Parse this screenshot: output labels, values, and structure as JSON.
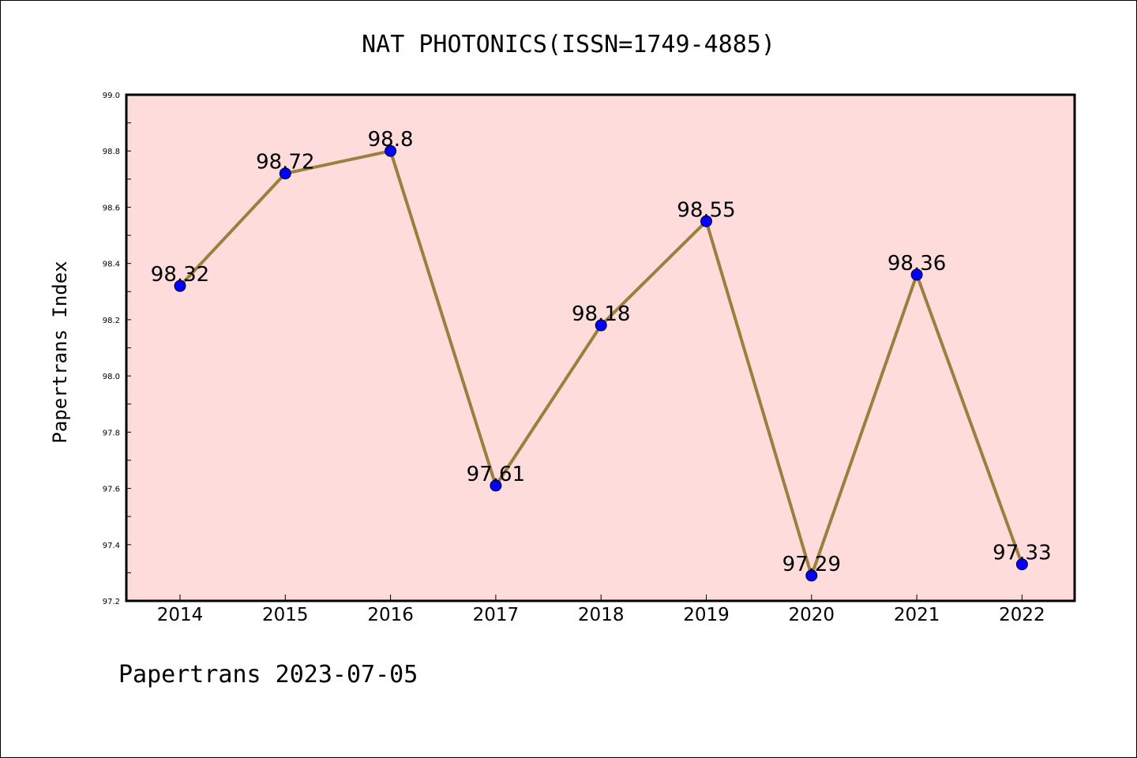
{
  "chart_data": {
    "type": "line",
    "title": "NAT PHOTONICS(ISSN=1749-4885)",
    "xlabel": "",
    "ylabel": "Papertrans Index",
    "categories": [
      "2014",
      "2015",
      "2016",
      "2017",
      "2018",
      "2019",
      "2020",
      "2021",
      "2022"
    ],
    "series": [
      {
        "values": [
          98.32,
          98.72,
          98.8,
          97.61,
          98.18,
          98.55,
          97.29,
          98.36,
          97.33
        ],
        "data_labels": [
          "98.32",
          "98.72",
          "98.8",
          "97.61",
          "98.18",
          "98.55",
          "97.29",
          "98.36",
          "97.33"
        ],
        "line_color": "#9b7f3e",
        "marker_color": "#0000ff"
      }
    ],
    "ylim": [
      97.2,
      99.0
    ],
    "yticks": [
      "97.2",
      "97.4",
      "97.6",
      "97.8",
      "98.0",
      "98.2",
      "98.4",
      "98.6",
      "98.8",
      "99.0"
    ],
    "grid": false,
    "plot_background": "#ffdcdc",
    "footer": "Papertrans 2023-07-05"
  }
}
